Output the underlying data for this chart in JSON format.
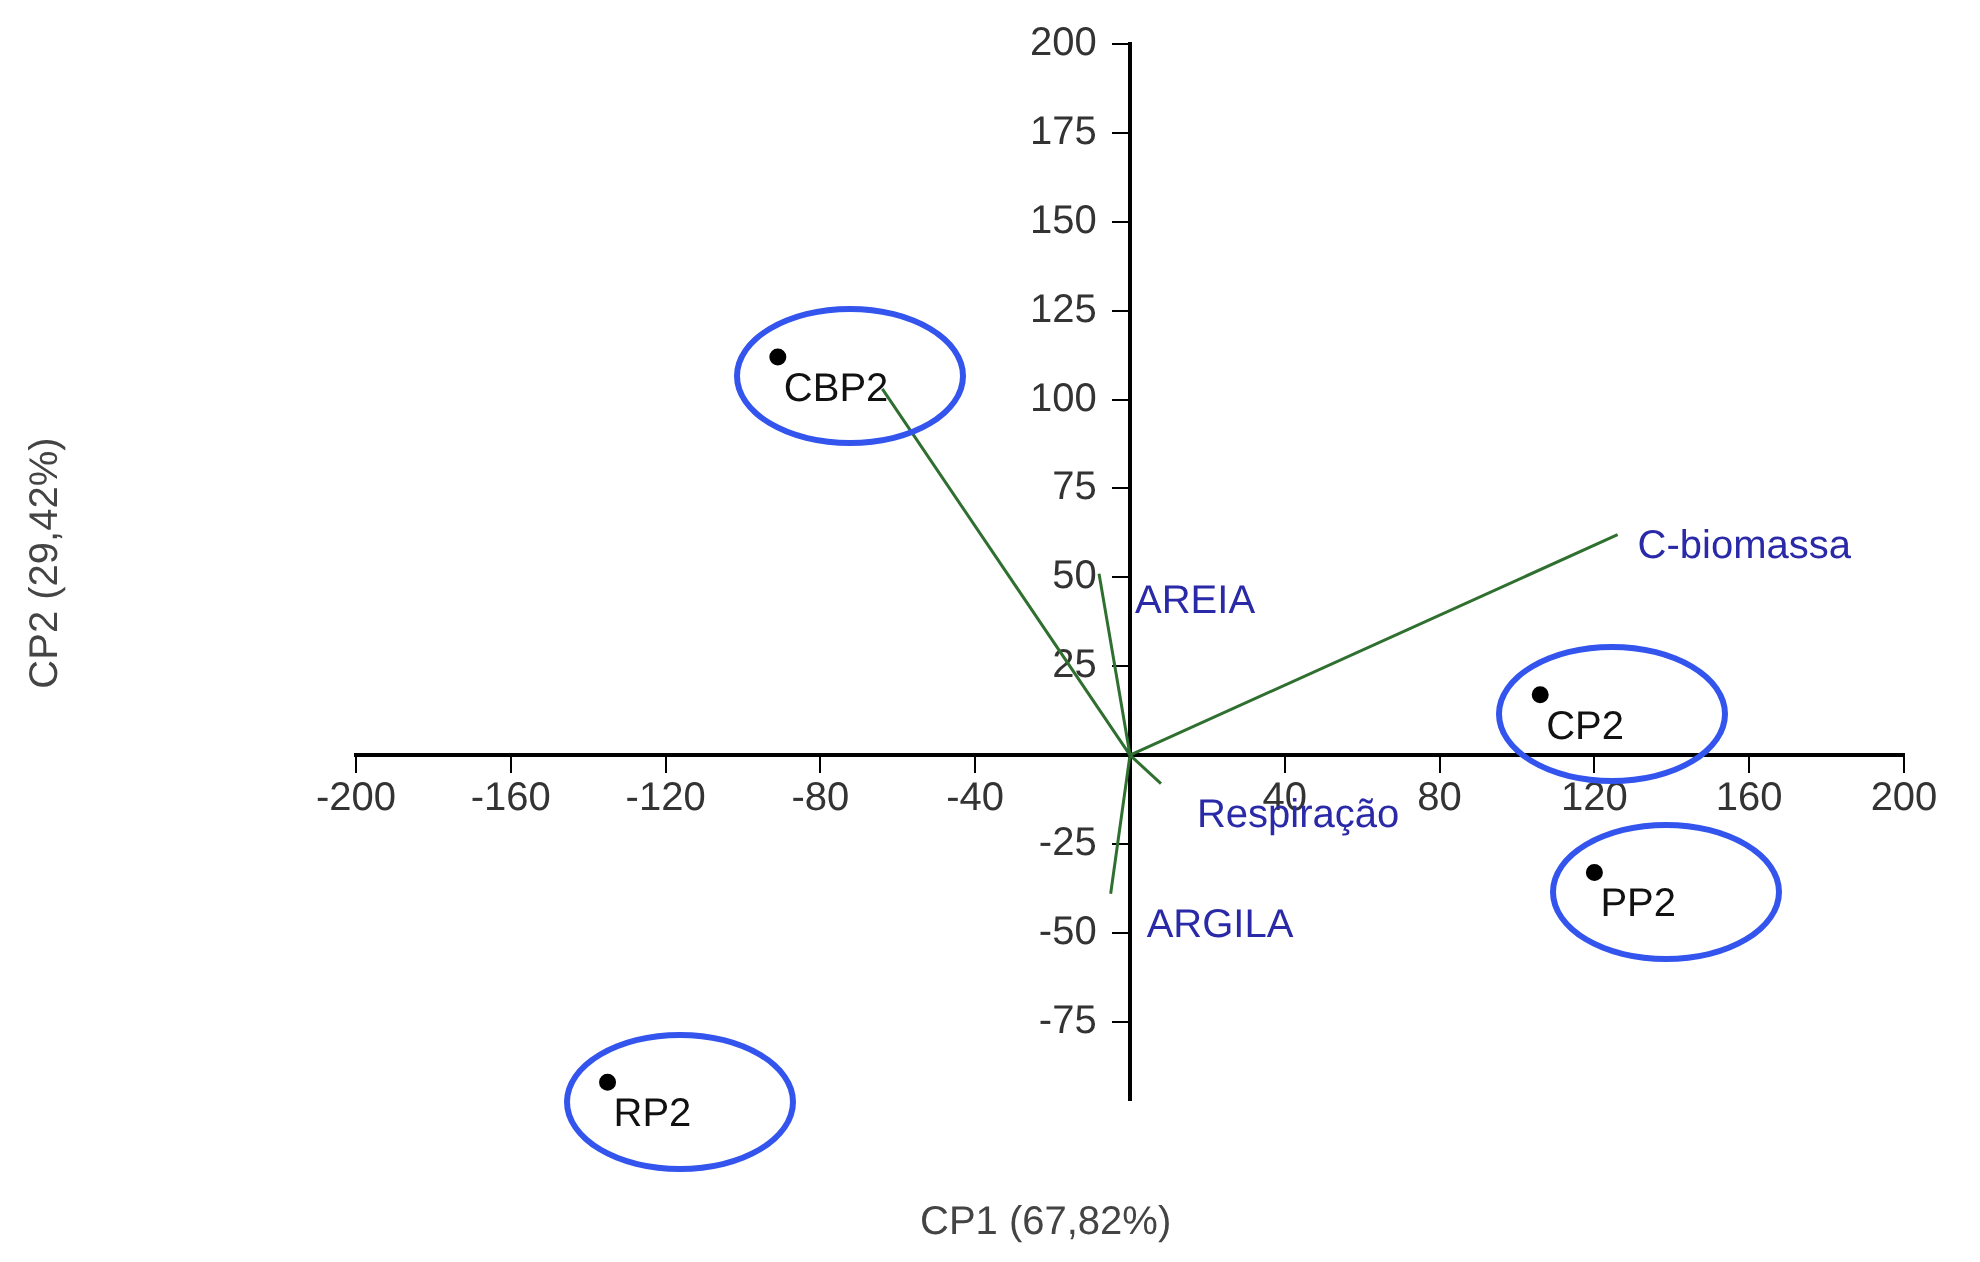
{
  "chart_data": {
    "type": "scatter",
    "xlabel": "CP1 (67,82%)",
    "annotations": [
      "CP2 (29,42%)"
    ],
    "xlim": [
      -200,
      200
    ],
    "xticks": [
      -200,
      -160,
      -120,
      -80,
      -40,
      40,
      80,
      120,
      160,
      200
    ],
    "ylim": [
      -97,
      200
    ],
    "yticks": [
      -75,
      -50,
      -25,
      25,
      50,
      75,
      100,
      125,
      150,
      175,
      200
    ],
    "grid": false,
    "legend": false,
    "marker": "circle",
    "series": [
      {
        "type": "scatter",
        "color": "#000000",
        "x": [
          -91,
          106,
          120,
          -135
        ],
        "values": [
          112,
          17,
          -33,
          -92
        ],
        "value_labels": [
          "CBP2",
          "CP2",
          "PP2",
          "RP2"
        ]
      },
      {
        "type": "line",
        "color": "#2f6f2f",
        "marker": "none",
        "x": [
          0,
          126,
          null,
          0,
          -64,
          null,
          0,
          -8,
          null,
          0,
          -5,
          null,
          0,
          8
        ],
        "values": [
          0,
          62,
          null,
          0,
          103,
          null,
          0,
          51,
          null,
          0,
          -39,
          null,
          0,
          -8
        ],
        "value_labels": [
          null,
          "C-biomassa",
          null,
          null,
          null,
          null,
          null,
          "AREIA",
          null,
          null,
          "ARGILA",
          null,
          null,
          "Respiração"
        ]
      }
    ]
  }
}
